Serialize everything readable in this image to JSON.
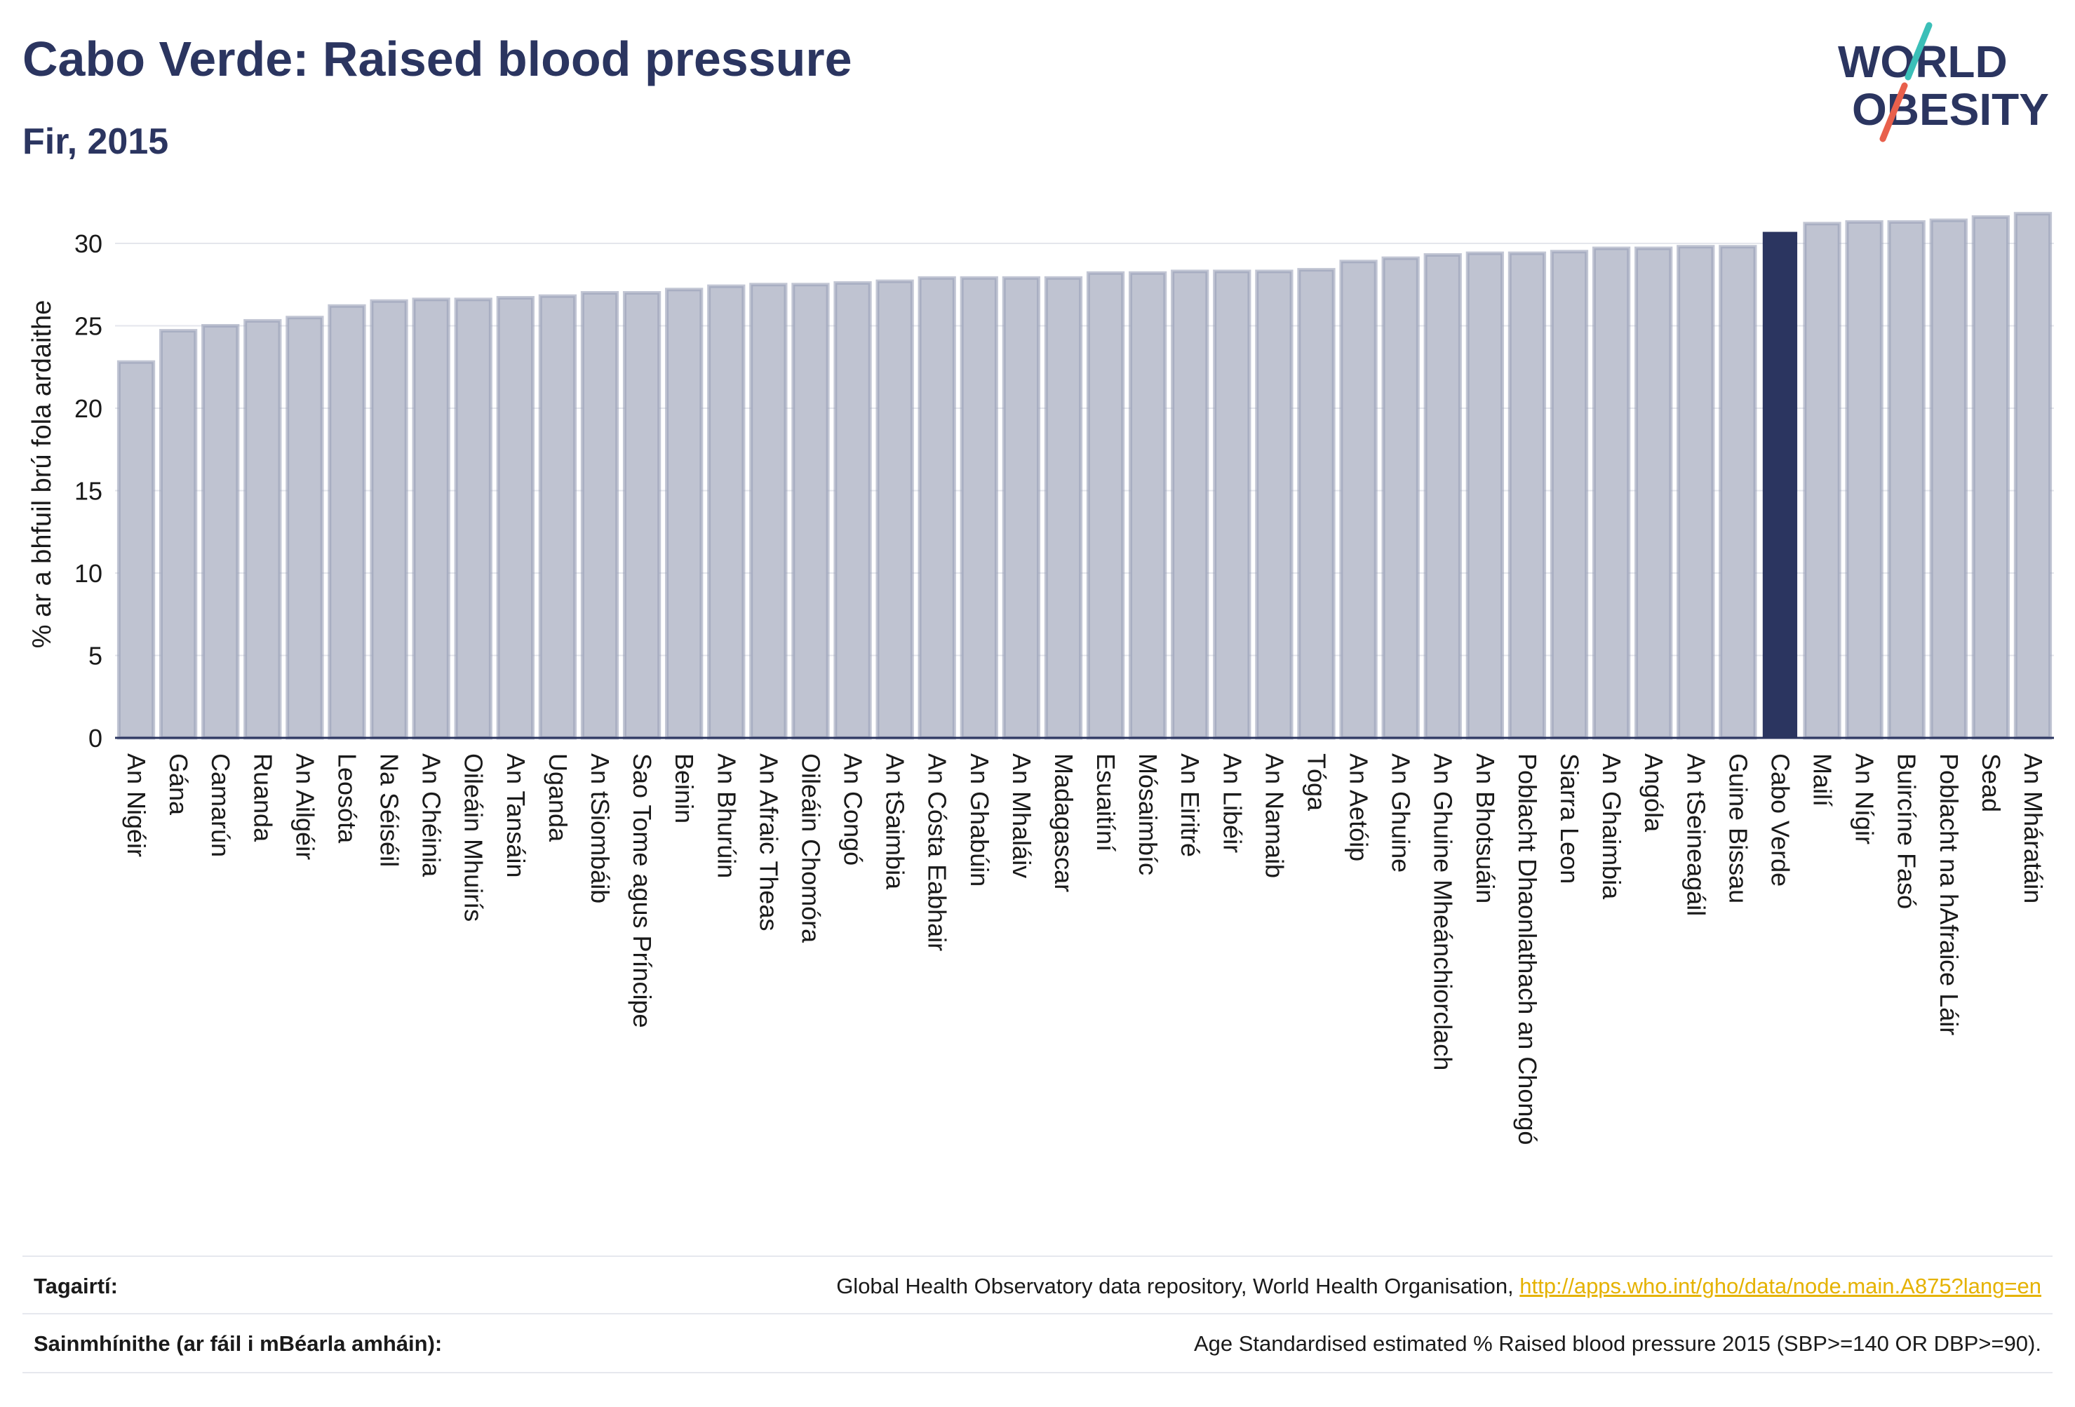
{
  "title": "Cabo Verde: Raised blood pressure",
  "subtitle": "Fir, 2015",
  "logo": {
    "line1": "WORLD",
    "line2": "OBESITY",
    "colors": {
      "text": "#2b3560",
      "slash_top": "#3bbfb8",
      "slash_bottom": "#e8604c"
    }
  },
  "footer": {
    "references_label": "Tagairtí:",
    "references_text": "Global Health Observatory data repository, World Health Organisation, ",
    "references_link": "http://apps.who.int/gho/data/node.main.A875?lang=en",
    "definitions_label": "Sainmhínithe (ar fáil i mBéarla amháin):",
    "definitions_text": "Age Standardised estimated % Raised blood pressure 2015 (SBP>=140 OR DBP>=90)."
  },
  "chart_data": {
    "type": "bar",
    "ylabel": "% ar a bhfuil brú fola ardaithe",
    "ylim": [
      0,
      32
    ],
    "yticks": [
      0,
      5,
      10,
      15,
      20,
      25,
      30
    ],
    "grid": true,
    "highlight": "Cabo Verde",
    "colors": {
      "bar": "#bfc3d1",
      "bar_edge": "#9aa0b8",
      "highlight": "#2b3560",
      "grid": "#e4e6ec",
      "axis": "#2b3560"
    },
    "categories": [
      "An Nigéir",
      "Gána",
      "Camarún",
      "Ruanda",
      "An Ailgéir",
      "Leosóta",
      "Na Séiséil",
      "An Chéinia",
      "Oileáin Mhuirís",
      "An Tansáin",
      "Uganda",
      "An tSiombáib",
      "Sao Tome agus Príncipe",
      "Beinin",
      "An Bhurúin",
      "An Afraic Theas",
      "Oileáin Chomóra",
      "An Congó",
      "An tSaimbia",
      "An Cósta Eabhair",
      "An Ghabúin",
      "An Mhaláiv",
      "Madagascar",
      "Esuaitíní",
      "Mósaimbíc",
      "An Eiritré",
      "An Libéir",
      "An Namaib",
      "Tóga",
      "An Aetóip",
      "An Ghuine",
      "An Ghuine Mheánchiorclach",
      "An Bhotsuáin",
      "Poblacht Dhaonlathach an Chongó",
      "Siarra Leon",
      "An Ghaimbia",
      "Angóla",
      "An tSeineagáil",
      "Guine Bissau",
      "Cabo Verde",
      "Mailí",
      "An Nígir",
      "Buircíne Fasó",
      "Poblacht na hAfraice Láir",
      "Sead",
      "An Mháratáin"
    ],
    "values": [
      22.8,
      24.7,
      25.0,
      25.3,
      25.5,
      26.2,
      26.5,
      26.6,
      26.6,
      26.7,
      26.8,
      27.0,
      27.0,
      27.2,
      27.4,
      27.5,
      27.5,
      27.6,
      27.7,
      27.9,
      27.9,
      27.9,
      27.9,
      28.2,
      28.2,
      28.3,
      28.3,
      28.3,
      28.4,
      28.9,
      29.1,
      29.3,
      29.4,
      29.4,
      29.5,
      29.7,
      29.7,
      29.8,
      29.8,
      30.7,
      31.2,
      31.3,
      31.3,
      31.4,
      31.6,
      31.8
    ]
  }
}
